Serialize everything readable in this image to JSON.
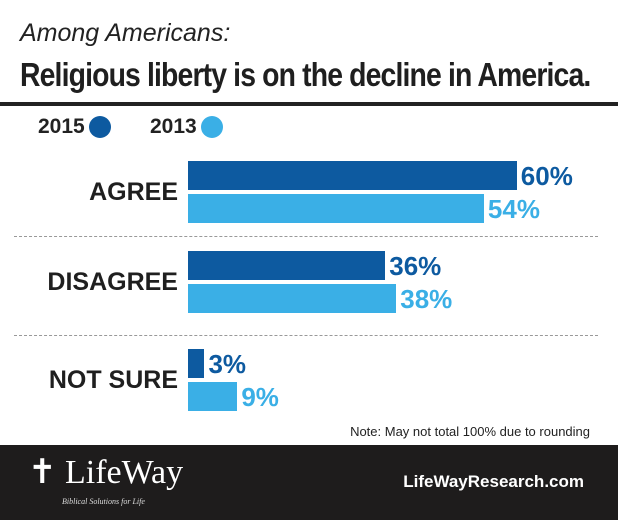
{
  "header": {
    "subtitle": "Among Americans:",
    "title": "Religious liberty is on the decline in America."
  },
  "chart_data": {
    "type": "bar",
    "orientation": "horizontal",
    "categories": [
      "AGREE",
      "DISAGREE",
      "NOT SURE"
    ],
    "series": [
      {
        "name": "2015",
        "color": "#0d5aa0",
        "values": [
          60,
          36,
          3
        ],
        "labels": [
          "60%",
          "36%",
          "3%"
        ]
      },
      {
        "name": "2013",
        "color": "#3aafe6",
        "values": [
          54,
          38,
          9
        ],
        "labels": [
          "54%",
          "38%",
          "9%"
        ]
      }
    ],
    "unit": "%",
    "legend": "top-left",
    "grid": false
  },
  "note": "Note: May not total 100% due to rounding",
  "footer": {
    "logo": "LifeWay",
    "tagline": "Biblical Solutions for Life",
    "url": "LifeWayResearch.com"
  }
}
